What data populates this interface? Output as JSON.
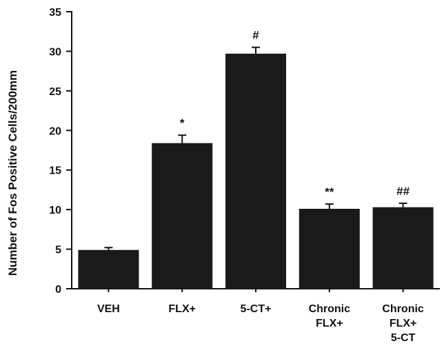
{
  "chart_data": {
    "type": "bar",
    "ylabel": "Number of Fos Positive Cells/200mm",
    "xlabel": "",
    "ylim": [
      0,
      35
    ],
    "yticks": [
      0,
      5,
      10,
      15,
      20,
      25,
      30,
      35
    ],
    "grid": false,
    "categories": [
      [
        "VEH"
      ],
      [
        "FLX+"
      ],
      [
        "5-CT+"
      ],
      [
        "Chronic",
        "FLX+"
      ],
      [
        "Chronic",
        "FLX+",
        "5-CT"
      ]
    ],
    "values": [
      4.9,
      18.4,
      29.7,
      10.1,
      10.3
    ],
    "errors": [
      0.3,
      1.0,
      0.8,
      0.6,
      0.5
    ],
    "annotations": [
      "",
      "*",
      "#",
      "**",
      "##"
    ],
    "bar_color": "#1a1a1a"
  }
}
